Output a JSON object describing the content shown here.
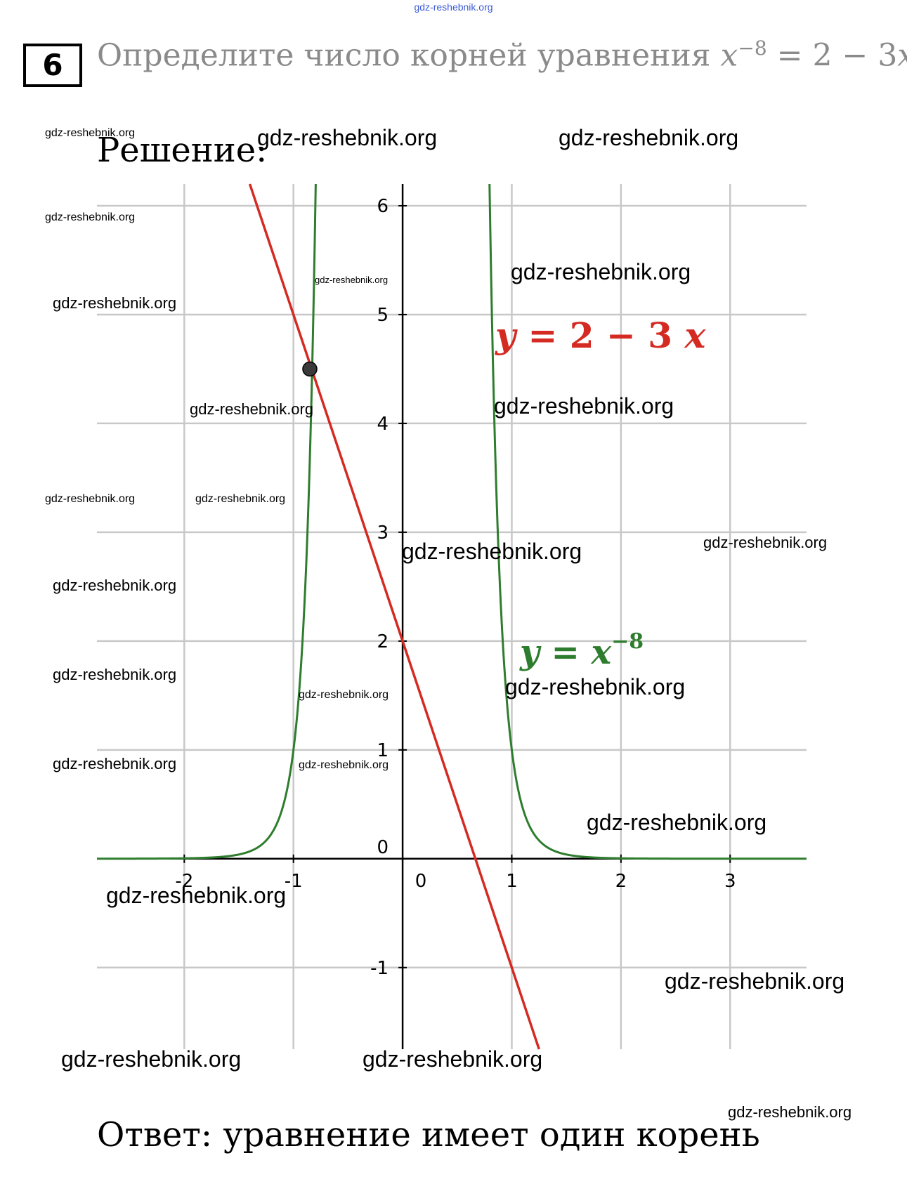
{
  "site_header": "gdz-reshebnik.org",
  "task": {
    "number": "6",
    "text_prefix": "Определите число корней уравнения ",
    "eq_base": "x",
    "eq_exponent": "−8",
    "eq_rest": " = 2 − 3",
    "eq_var": "x",
    "eq_end": "."
  },
  "solution_title": "Решение:",
  "answer": "Ответ: уравнение имеет один корень",
  "watermark_text": "gdz-reshebnik.org",
  "watermarks": [
    "gdz-reshebnik.org",
    "gdz-reshebnik.org",
    "gdz-reshebnik.org",
    "gdz-reshebnik.org",
    "gdz-reshebnik.org",
    "gdz-reshebnik.org",
    "gdz-reshebnik.org",
    "gdz-reshebnik.org",
    "gdz-reshebnik.org",
    "gdz-reshebnik.org",
    "gdz-reshebnik.org",
    "gdz-reshebnik.org",
    "gdz-reshebnik.org",
    "gdz-reshebnik.org",
    "gdz-reshebnik.org",
    "gdz-reshebnik.org",
    "gdz-reshebnik.org",
    "gdz-reshebnik.org",
    "gdz-reshebnik.org",
    "gdz-reshebnik.org",
    "gdz-reshebnik.org",
    "gdz-reshebnik.org",
    "gdz-reshebnik.org"
  ],
  "chart_data": {
    "type": "line",
    "xlim": [
      -2.8,
      3.7
    ],
    "ylim": [
      -1.75,
      6.2
    ],
    "x_ticks": [
      -2,
      -1,
      0,
      1,
      2,
      3
    ],
    "x_tick_labels": [
      "-2",
      "-1",
      "0",
      "1",
      "2",
      "3"
    ],
    "y_ticks": [
      -1,
      0,
      1,
      2,
      3,
      4,
      5,
      6
    ],
    "y_tick_labels": [
      "-1",
      "0",
      "1",
      "2",
      "3",
      "4",
      "5",
      "6"
    ],
    "grid": true,
    "series": [
      {
        "name": "y = 2 − 3 x",
        "function": "2 - 3*x",
        "color": "#d42a22",
        "points": [
          [
            -1.4,
            6.2
          ],
          [
            -0.9,
            4.7
          ],
          [
            0,
            2
          ],
          [
            0.5,
            0.5
          ],
          [
            1,
            -1
          ],
          [
            1.25,
            -1.75
          ]
        ]
      },
      {
        "name": "y = x^−8",
        "function": "x^-8",
        "color": "#2e7d2e",
        "points": [
          [
            -2.8,
            0.0003
          ],
          [
            -2,
            0.0039
          ],
          [
            -1.5,
            0.039
          ],
          [
            -1.2,
            0.233
          ],
          [
            -1,
            1
          ],
          [
            -0.9,
            2.32
          ],
          [
            -0.85,
            3.67
          ],
          [
            -0.8,
            5.96
          ],
          [
            0.8,
            5.96
          ],
          [
            0.85,
            3.67
          ],
          [
            0.9,
            2.32
          ],
          [
            1,
            1
          ],
          [
            1.2,
            0.233
          ],
          [
            1.5,
            0.039
          ],
          [
            2,
            0.0039
          ],
          [
            3.7,
            3e-05
          ]
        ]
      }
    ],
    "intersection": {
      "x": -0.85,
      "y": 4.5
    },
    "labels": {
      "line": {
        "lhs": "y",
        "rhs": " = 2 − 3 ",
        "var": "x"
      },
      "power": {
        "lhs": "y",
        "rhs": " = ",
        "var": "x",
        "exp": "−8"
      }
    }
  }
}
